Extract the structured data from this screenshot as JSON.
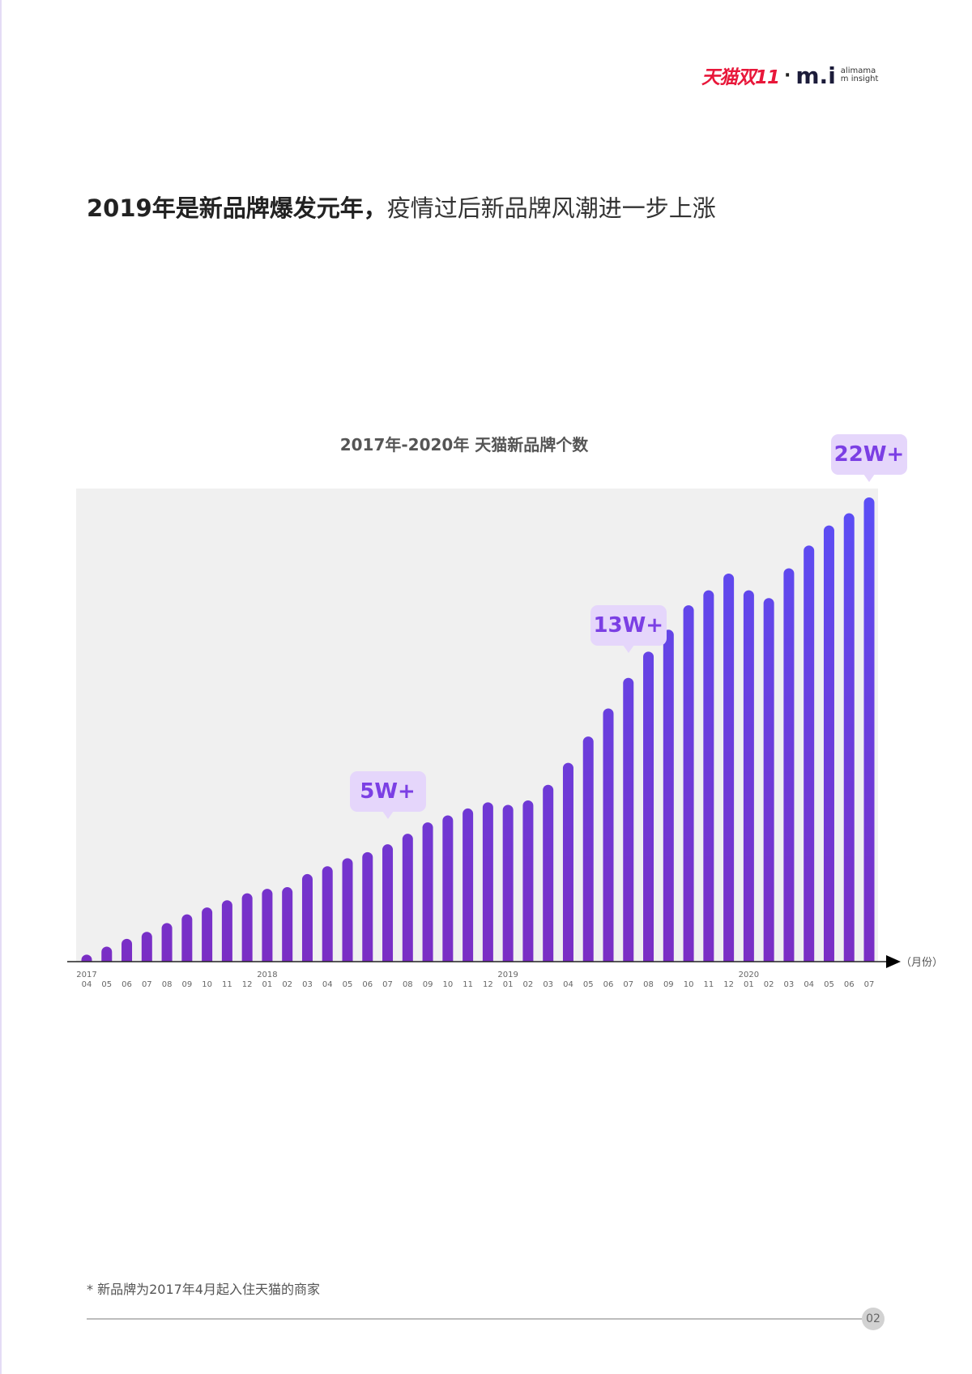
{
  "logo": {
    "brand": "天猫双11",
    "separator": "·",
    "mi": "m.i",
    "sub_line1": "alimama",
    "sub_line2": "m insight"
  },
  "headline": {
    "bold": "2019年是新品牌爆发元年，",
    "regular": "疫情过后新品牌风潮进一步上涨"
  },
  "chart_data": {
    "type": "bar",
    "title": "2017年-2020年 天猫新品牌个数",
    "xlabel": "（月份）",
    "ylabel": "",
    "unit": "W",
    "grid": false,
    "colors": {
      "bar_top": "#5a4ff7",
      "bar_bottom": "#7a2ec4",
      "plot_bg": "#f0f0f0",
      "bubble_bg": "#e5d6fb",
      "bubble_text": "#7b3fe4"
    },
    "categories": [
      "2017-04",
      "2017-05",
      "2017-06",
      "2017-07",
      "2017-08",
      "2017-09",
      "2017-10",
      "2017-11",
      "2017-12",
      "2018-01",
      "2018-02",
      "2018-03",
      "2018-04",
      "2018-05",
      "2018-06",
      "2018-07",
      "2018-08",
      "2018-09",
      "2018-10",
      "2018-11",
      "2018-12",
      "2019-01",
      "2019-02",
      "2019-03",
      "2019-04",
      "2019-05",
      "2019-06",
      "2019-07",
      "2019-08",
      "2019-09",
      "2019-10",
      "2019-11",
      "2019-12",
      "2020-01",
      "2020-02",
      "2020-03",
      "2020-04",
      "2020-05",
      "2020-06",
      "2020-07"
    ],
    "tick_months": [
      "04",
      "05",
      "06",
      "07",
      "08",
      "09",
      "10",
      "11",
      "12",
      "01",
      "02",
      "03",
      "04",
      "05",
      "06",
      "07",
      "08",
      "09",
      "10",
      "11",
      "12",
      "01",
      "02",
      "03",
      "04",
      "05",
      "06",
      "07",
      "08",
      "09",
      "10",
      "11",
      "12",
      "01",
      "02",
      "03",
      "04",
      "05",
      "06",
      "07"
    ],
    "tick_years": [
      {
        "label": "2017",
        "index": 0
      },
      {
        "label": "2018",
        "index": 9
      },
      {
        "label": "2019",
        "index": 21
      },
      {
        "label": "2020",
        "index": 33
      }
    ],
    "values": [
      0.33,
      0.71,
      1.08,
      1.41,
      1.83,
      2.24,
      2.57,
      2.91,
      3.24,
      3.45,
      3.53,
      4.15,
      4.52,
      4.9,
      5.19,
      5.56,
      6.06,
      6.6,
      6.93,
      7.26,
      7.55,
      7.43,
      7.64,
      8.38,
      9.42,
      10.67,
      12.0,
      13.45,
      14.69,
      15.73,
      16.89,
      17.6,
      18.39,
      17.6,
      17.23,
      18.64,
      19.72,
      20.67,
      21.25,
      22.0
    ],
    "ylim": [
      0,
      22.8
    ],
    "annotations": [
      {
        "text": "5W+",
        "category": "2018-07"
      },
      {
        "text": "13W+",
        "category": "2019-07"
      },
      {
        "text": "22W+",
        "category": "2020-07"
      }
    ]
  },
  "footnote": "* 新品牌为2017年4月起入住天猫的商家",
  "page_number": "02"
}
